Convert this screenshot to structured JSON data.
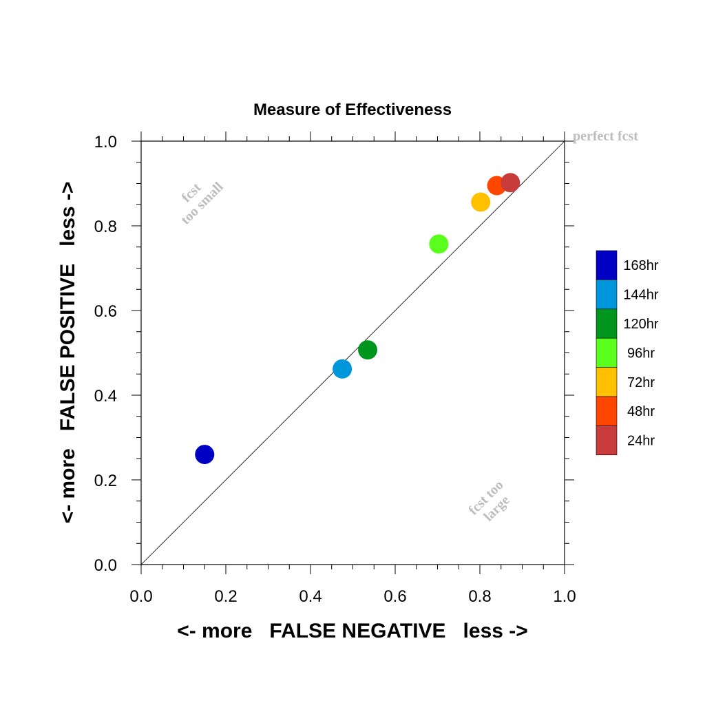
{
  "chart_data": {
    "type": "scatter",
    "title": "Measure of Effectiveness",
    "xlabel": "<- more   FALSE NEGATIVE   less ->",
    "ylabel": "<- more   FALSE POSITIVE   less ->",
    "xlim": [
      0.0,
      1.0
    ],
    "ylim": [
      0.0,
      1.0
    ],
    "x_ticks": [
      "0.0",
      "0.2",
      "0.4",
      "0.6",
      "0.8",
      "1.0"
    ],
    "y_ticks": [
      "0.0",
      "0.2",
      "0.4",
      "0.6",
      "0.8",
      "1.0"
    ],
    "grid": false,
    "reference_line": {
      "from": [
        0.0,
        0.0
      ],
      "to": [
        1.0,
        1.0
      ]
    },
    "annotations": {
      "perfect": "perfect fcst",
      "too_small_1": "fcst",
      "too_small_2": "too small",
      "too_large_1": "fcst too",
      "too_large_2": "large"
    },
    "legend_position": "right",
    "points": [
      {
        "label": "168hr",
        "x": 0.15,
        "y": 0.26,
        "color": "#0000c4"
      },
      {
        "label": "144hr",
        "x": 0.475,
        "y": 0.462,
        "color": "#0096dc"
      },
      {
        "label": "120hr",
        "x": 0.535,
        "y": 0.507,
        "color": "#00961e"
      },
      {
        "label": "96hr",
        "x": 0.703,
        "y": 0.757,
        "color": "#5aff1e"
      },
      {
        "label": "72hr",
        "x": 0.802,
        "y": 0.856,
        "color": "#ffc000"
      },
      {
        "label": "48hr",
        "x": 0.84,
        "y": 0.895,
        "color": "#ff4600"
      },
      {
        "label": "24hr",
        "x": 0.872,
        "y": 0.902,
        "color": "#c83c3c"
      }
    ]
  }
}
